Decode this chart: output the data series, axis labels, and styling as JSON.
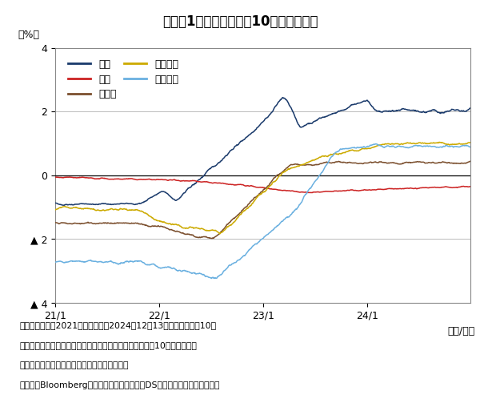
{
  "title": "》図表1：主要国の実質10年債利回り》",
  "title_text": "【図表1：主要国の実質10年債利回り】",
  "ylabel": "（%）",
  "xlabel": "（年/月）",
  "ylim": [
    -4,
    4
  ],
  "ytick_labels": [
    "▲ 4",
    "▲ 2",
    "0",
    "2",
    "4"
  ],
  "xtick_labels": [
    "21/1",
    "22/1",
    "23/1",
    "24/1"
  ],
  "colors": {
    "us": "#1a3a6b",
    "japan": "#cc2222",
    "germany": "#7b4f2e",
    "france": "#ccaa00",
    "uk": "#6ab0e0"
  },
  "legend_labels": [
    "米国",
    "日本",
    "ドイツ",
    "フランス",
    "イギリス"
  ],
  "note_line1": "（注）データは2021年１月１日～2024年12月13日、実質金利は10年",
  "note_line2": "　　　債利回りから市場が織り込む期待インフレ率である10年ブレーク・",
  "note_line3": "　　　イーブン・インフレ率を控除したもの。",
  "note_line4": "（出所）Bloombergのデータを基に三井住叻DSアセットマネジメント作成",
  "background_color": "#ffffff",
  "grid_color": "#bbbbbb"
}
